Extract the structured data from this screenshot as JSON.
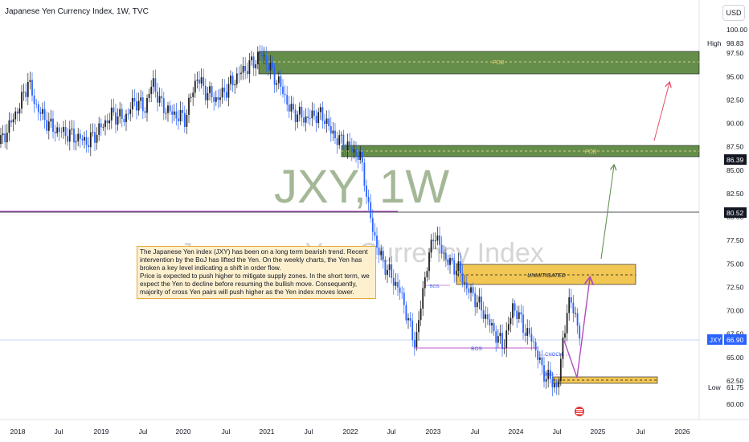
{
  "header": {
    "title": "Japanese Yen Currency Index, 1W, TVC",
    "currency_button": "USD"
  },
  "watermark": {
    "symbol": "JXY, 1W",
    "name": "Japanese Yen Currency Index"
  },
  "annotation_note": {
    "line1": "The Japanese Yen index (JXY) has been on a long term bearish trend. Recent intervention by the BoJ has lifted the Yen. On the weekly charts, the Yen has broken a key level indicating a shift in order flow.",
    "line2": "Price is expected to push higher to mitigate supply zones. In the short term, we expect the Yen to decline before resuming the bullish move. Consequently, majority of cross Yen pairs will push higher as the Yen index moves lower."
  },
  "colors": {
    "candle_up": "#1f1f1f",
    "candle_down": "#2962ff",
    "fob_zone": "#4a7a2a",
    "unmitigated_zone": "#f0c040",
    "purple": "#9c27b0",
    "green_arrow": "#5a8a4a",
    "red_arrow": "#e0506a",
    "jxy_label": "#2962ff"
  },
  "chart_data": {
    "type": "candlestick",
    "symbol": "JXY",
    "timeframe": "1W",
    "ylim": [
      59.5,
      100.5
    ],
    "y_ticks": [
      60.0,
      62.5,
      65.0,
      67.5,
      70.0,
      72.5,
      75.0,
      77.5,
      80.0,
      82.5,
      85.0,
      87.5,
      90.0,
      92.5,
      95.0,
      97.5,
      100.0
    ],
    "x_ticks": [
      "2018",
      "Jul",
      "2019",
      "Jul",
      "2020",
      "Jul",
      "2021",
      "Jul",
      "2022",
      "Jul",
      "2023",
      "Jul",
      "2024",
      "Jul",
      "2025",
      "Jul",
      "2026"
    ],
    "price_labels": {
      "high": {
        "label": "High",
        "value": "98.83"
      },
      "fob_upper": {
        "value": "86.39"
      },
      "key_level": {
        "value": "80.52"
      },
      "current": {
        "label": "JXY",
        "value": "66.90"
      },
      "low": {
        "label": "Low",
        "value": "61.75"
      }
    },
    "zones": [
      {
        "name": "FOB",
        "from": 95.2,
        "to": 97.9
      },
      {
        "name": "FOB",
        "from": 86.4,
        "to": 87.7
      },
      {
        "name": "UNMITIGATED",
        "from": 72.8,
        "to": 75.0
      },
      {
        "name": "",
        "from": 62.2,
        "to": 62.9
      }
    ],
    "annotations": [
      "BOS",
      "BOS",
      "CHOCH",
      "BOS"
    ],
    "price_path": [
      [
        0,
        87.8
      ],
      [
        12,
        89.8
      ],
      [
        25,
        92.0
      ],
      [
        35,
        94.5
      ],
      [
        44,
        92.0
      ],
      [
        55,
        90.5
      ],
      [
        65,
        89.5
      ],
      [
        80,
        89.0
      ],
      [
        95,
        88.5
      ],
      [
        110,
        88.0
      ],
      [
        125,
        89.5
      ],
      [
        140,
        91.0
      ],
      [
        155,
        90.5
      ],
      [
        168,
        92.5
      ],
      [
        180,
        91.5
      ],
      [
        190,
        94.5
      ],
      [
        200,
        92.0
      ],
      [
        215,
        91.0
      ],
      [
        230,
        90.5
      ],
      [
        245,
        95.0
      ],
      [
        255,
        93.5
      ],
      [
        270,
        92.5
      ],
      [
        285,
        94.0
      ],
      [
        300,
        95.5
      ],
      [
        315,
        96.5
      ],
      [
        325,
        97.5
      ],
      [
        335,
        96.0
      ],
      [
        345,
        94.5
      ],
      [
        352,
        93.5
      ],
      [
        360,
        91.5
      ],
      [
        370,
        91.0
      ],
      [
        380,
        90.5
      ],
      [
        395,
        91.0
      ],
      [
        405,
        90.5
      ],
      [
        412,
        89.0
      ],
      [
        425,
        88.0
      ],
      [
        440,
        87.0
      ],
      [
        448,
        86.4
      ],
      [
        454,
        84.0
      ],
      [
        458,
        81.0
      ],
      [
        462,
        79.5
      ],
      [
        466,
        78.0
      ],
      [
        470,
        76.5
      ],
      [
        478,
        75.0
      ],
      [
        488,
        73.5
      ],
      [
        498,
        72.0
      ],
      [
        505,
        70.0
      ],
      [
        512,
        67.5
      ],
      [
        517,
        66.5
      ],
      [
        523,
        70.0
      ],
      [
        530,
        74.5
      ],
      [
        535,
        76.0
      ],
      [
        540,
        78.5
      ],
      [
        546,
        77.0
      ],
      [
        552,
        76.0
      ],
      [
        560,
        75.0
      ],
      [
        570,
        74.5
      ],
      [
        580,
        72.5
      ],
      [
        590,
        71.5
      ],
      [
        600,
        70.0
      ],
      [
        610,
        68.5
      ],
      [
        620,
        67.0
      ],
      [
        626,
        66.2
      ],
      [
        632,
        68.0
      ],
      [
        638,
        70.5
      ],
      [
        645,
        69.5
      ],
      [
        650,
        68.5
      ],
      [
        656,
        67.5
      ],
      [
        662,
        67.0
      ],
      [
        668,
        65.5
      ],
      [
        675,
        63.5
      ],
      [
        682,
        62.8
      ],
      [
        688,
        62.3
      ],
      [
        693,
        61.75
      ],
      [
        697,
        63.5
      ],
      [
        701,
        67.5
      ],
      [
        706,
        70.0
      ],
      [
        711,
        71.0
      ],
      [
        715,
        70.0
      ],
      [
        719,
        68.0
      ],
      [
        722,
        66.9
      ]
    ]
  }
}
